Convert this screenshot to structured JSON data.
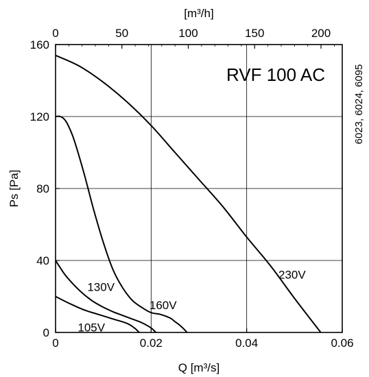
{
  "chart_data": {
    "type": "line",
    "title": "RVF 100 AC",
    "side_note": "6023, 6024, 6095",
    "xlabel": "Q [m³/s]",
    "ylabel": "Ps [Pa]",
    "x2label": "[m³/h]",
    "xlim": [
      0,
      0.06
    ],
    "ylim": [
      0,
      160
    ],
    "x2lim": [
      0,
      216
    ],
    "grid": true,
    "x_ticks": [
      "0",
      "0.02",
      "0.04",
      "0.06"
    ],
    "y_ticks": [
      "0",
      "40",
      "80",
      "120",
      "160"
    ],
    "x2_ticks": [
      "0",
      "50",
      "100",
      "150",
      "200"
    ],
    "series": [
      {
        "name": "230V",
        "x": [
          0,
          0.005,
          0.01,
          0.015,
          0.02,
          0.025,
          0.03,
          0.035,
          0.04,
          0.045,
          0.05,
          0.0555
        ],
        "y": [
          154,
          148,
          139,
          128,
          115,
          100,
          85,
          70,
          53,
          37,
          19,
          0
        ]
      },
      {
        "name": "160V",
        "x": [
          0,
          0.001,
          0.002,
          0.003,
          0.004,
          0.006,
          0.008,
          0.01,
          0.012,
          0.014,
          0.016,
          0.018,
          0.02,
          0.022,
          0.024,
          0.025,
          0.026,
          0.027,
          0.0275
        ],
        "y": [
          120,
          120,
          118,
          113,
          106,
          88,
          68,
          50,
          35,
          25,
          18,
          14,
          11,
          10,
          8,
          6,
          4,
          1.5,
          0
        ]
      },
      {
        "name": "130V",
        "x": [
          0,
          0.002,
          0.004,
          0.006,
          0.008,
          0.01,
          0.012,
          0.014,
          0.016,
          0.018,
          0.02,
          0.021
        ],
        "y": [
          40,
          32,
          26,
          21,
          17,
          14,
          11.5,
          9.5,
          7.5,
          5.5,
          2.5,
          0
        ]
      },
      {
        "name": "105V",
        "x": [
          0,
          0.003,
          0.006,
          0.009,
          0.012,
          0.015,
          0.0165,
          0.0175
        ],
        "y": [
          20,
          16,
          12.5,
          10,
          7.5,
          5,
          2.5,
          0
        ]
      }
    ]
  }
}
